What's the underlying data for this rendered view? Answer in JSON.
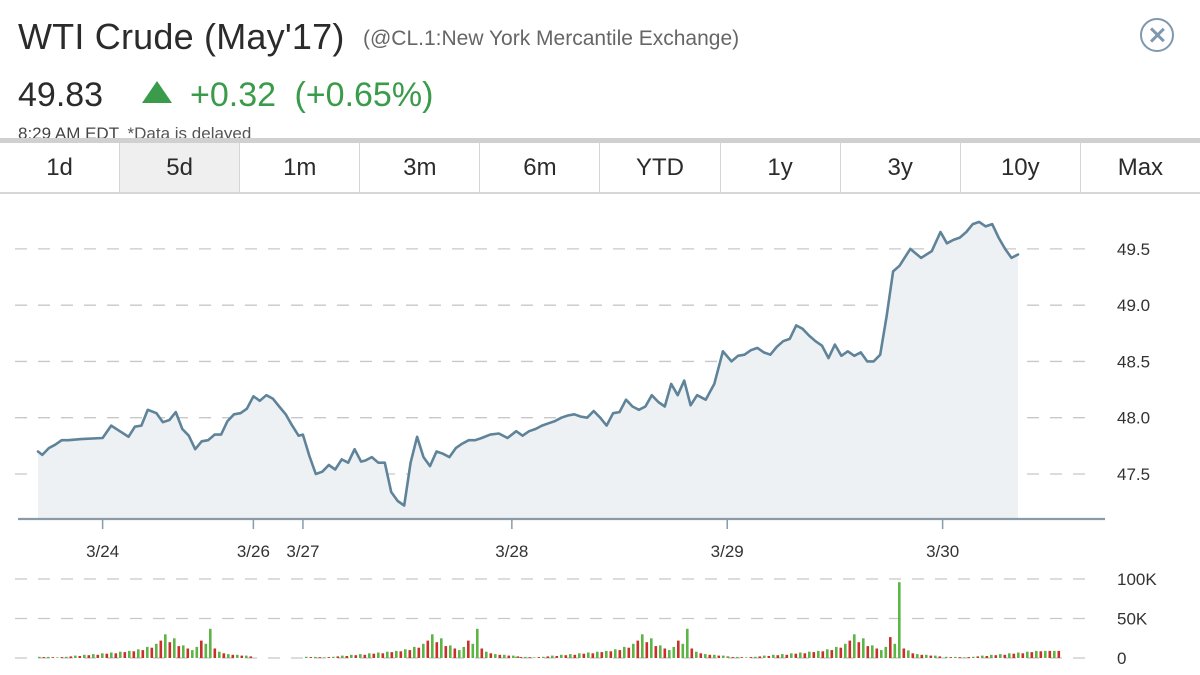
{
  "header": {
    "title": "WTI Crude (May'17)",
    "subtitle": "(@CL.1:New York Mercantile Exchange)",
    "price": "49.83",
    "change": "+0.32",
    "change_pct": "(+0.65%)",
    "time": "8:29 AM EDT",
    "delayed_note": "*Data is delayed",
    "change_direction": "up",
    "up_color": "#3a9b4a"
  },
  "icons": {
    "close": "close-icon",
    "arrow": "up-triangle-icon"
  },
  "tabs": [
    {
      "label": "1d"
    },
    {
      "label": "5d",
      "active": true
    },
    {
      "label": "1m"
    },
    {
      "label": "3m"
    },
    {
      "label": "6m"
    },
    {
      "label": "YTD"
    },
    {
      "label": "1y"
    },
    {
      "label": "3y"
    },
    {
      "label": "10y"
    },
    {
      "label": "Max"
    }
  ],
  "chart_data": [
    {
      "type": "area",
      "title": "",
      "xlabel": "",
      "ylabel": "",
      "ylim": [
        47.1,
        49.97
      ],
      "yticks": [
        47.5,
        48.0,
        48.5,
        49.0,
        49.5
      ],
      "ytick_labels": [
        "47.5",
        "48.0",
        "48.5",
        "49.0",
        "49.5"
      ],
      "grid": true,
      "xticks": [
        {
          "x": 3.0,
          "label": "3/24"
        },
        {
          "x": 10.0,
          "label": "3/26"
        },
        {
          "x": 12.3,
          "label": "3/27"
        },
        {
          "x": 22.0,
          "label": "3/28"
        },
        {
          "x": 32.0,
          "label": "3/29"
        },
        {
          "x": 42.0,
          "label": "3/30"
        }
      ],
      "line_color": "#5f8399",
      "fill_color": "#eef1f4",
      "series": [
        {
          "x": [
            0,
            0.2,
            0.5,
            0.8,
            1.1,
            1.4,
            2.0,
            3.0,
            3.4,
            3.8,
            4.2,
            4.5,
            4.8,
            5.1,
            5.5,
            5.8,
            6.1,
            6.4,
            6.7,
            7.0,
            7.3,
            7.6,
            7.9,
            8.2,
            8.5,
            8.8,
            9.1,
            9.4,
            9.7,
            10.0,
            10.3,
            10.6,
            10.9,
            11.2,
            11.5,
            11.8,
            12.1,
            12.3,
            12.6,
            12.9,
            13.2,
            13.5,
            13.8,
            14.1,
            14.4,
            14.7,
            15.0,
            15.2,
            15.5,
            15.8,
            16.1,
            16.4,
            16.7,
            17.0,
            17.3,
            17.6,
            17.9,
            18.2,
            18.5,
            18.8,
            19.1,
            19.4,
            19.7,
            20.0,
            20.3,
            20.6,
            21.0,
            21.4,
            21.8,
            22.2,
            22.5,
            22.8,
            23.1,
            23.4,
            23.7,
            24.0,
            24.3,
            24.6,
            24.9,
            25.2,
            25.5,
            25.8,
            26.1,
            26.4,
            26.7,
            27.0,
            27.3,
            27.6,
            27.9,
            28.2,
            28.5,
            28.8,
            29.1,
            29.4,
            29.7,
            30.0,
            30.3,
            30.6,
            31.0,
            31.4,
            31.8,
            32.2,
            32.5,
            32.8,
            33.1,
            33.4,
            33.7,
            34.0,
            34.3,
            34.6,
            34.9,
            35.2,
            35.5,
            35.8,
            36.1,
            36.4,
            36.7,
            37.0,
            37.3,
            37.6,
            37.9,
            38.2,
            38.5,
            38.8,
            39.1,
            39.4,
            39.7,
            40.0,
            40.5,
            41.0,
            41.5,
            41.9,
            42.2,
            42.5,
            42.8,
            43.1,
            43.4,
            43.7,
            44.0,
            44.3,
            44.6,
            44.9,
            45.2,
            45.5
          ],
          "y": [
            47.7,
            47.67,
            47.73,
            47.76,
            47.8,
            47.8,
            47.81,
            47.82,
            47.93,
            47.88,
            47.83,
            47.92,
            47.93,
            48.07,
            48.04,
            47.96,
            47.98,
            48.05,
            47.9,
            47.84,
            47.72,
            47.79,
            47.8,
            47.85,
            47.85,
            47.97,
            48.03,
            48.04,
            48.08,
            48.19,
            48.15,
            48.2,
            48.17,
            48.1,
            48.03,
            47.93,
            47.84,
            47.85,
            47.66,
            47.5,
            47.52,
            47.58,
            47.54,
            47.63,
            47.6,
            47.72,
            47.61,
            47.62,
            47.65,
            47.6,
            47.6,
            47.34,
            47.26,
            47.22,
            47.6,
            47.83,
            47.65,
            47.57,
            47.7,
            47.68,
            47.65,
            47.73,
            47.77,
            47.8,
            47.8,
            47.82,
            47.85,
            47.86,
            47.82,
            47.88,
            47.84,
            47.88,
            47.9,
            47.93,
            47.95,
            47.97,
            48.0,
            48.02,
            48.03,
            48.01,
            48.0,
            48.06,
            48.0,
            47.93,
            48.04,
            48.05,
            48.16,
            48.1,
            48.07,
            48.1,
            48.2,
            48.14,
            48.1,
            48.3,
            48.2,
            48.33,
            48.11,
            48.2,
            48.16,
            48.3,
            48.59,
            48.5,
            48.55,
            48.56,
            48.6,
            48.62,
            48.58,
            48.56,
            48.63,
            48.68,
            48.7,
            48.82,
            48.79,
            48.73,
            48.68,
            48.64,
            48.53,
            48.65,
            48.55,
            48.59,
            48.55,
            48.58,
            48.5,
            48.5,
            48.56,
            48.9,
            49.3,
            49.35,
            49.5,
            49.42,
            49.48,
            49.65,
            49.55,
            49.58,
            49.6,
            49.65,
            49.72,
            49.74,
            49.7,
            49.72,
            49.6,
            49.5,
            49.42,
            49.45
          ]
        }
      ]
    },
    {
      "type": "bar",
      "title": "",
      "ylabel": "",
      "ylim": [
        0,
        100000
      ],
      "yticks": [
        0,
        50000,
        100000
      ],
      "ytick_labels": [
        "0",
        "50K",
        "100K"
      ],
      "grid": true,
      "colors": {
        "up": "#5db546",
        "down": "#c9302c"
      },
      "series": [
        {
          "name": "volume",
          "values": [
            {
              "v": 1500,
              "c": "up"
            },
            {
              "v": 1200,
              "c": "down"
            },
            {
              "v": 1400,
              "c": "up"
            },
            {
              "v": 1000,
              "c": "down"
            },
            {
              "v": 800,
              "c": "up"
            },
            {
              "v": 1200,
              "c": "down"
            },
            {
              "v": 1500,
              "c": "up"
            },
            {
              "v": 2000,
              "c": "down"
            },
            {
              "v": 3000,
              "c": "up"
            },
            {
              "v": 2500,
              "c": "down"
            },
            {
              "v": 4000,
              "c": "up"
            },
            {
              "v": 3500,
              "c": "down"
            },
            {
              "v": 5000,
              "c": "up"
            },
            {
              "v": 4000,
              "c": "down"
            },
            {
              "v": 6000,
              "c": "up"
            },
            {
              "v": 5500,
              "c": "down"
            },
            {
              "v": 7000,
              "c": "up"
            },
            {
              "v": 6000,
              "c": "down"
            },
            {
              "v": 8000,
              "c": "up"
            },
            {
              "v": 7500,
              "c": "down"
            },
            {
              "v": 9000,
              "c": "up"
            },
            {
              "v": 8500,
              "c": "down"
            },
            {
              "v": 11000,
              "c": "up"
            },
            {
              "v": 10000,
              "c": "down"
            },
            {
              "v": 14000,
              "c": "up"
            },
            {
              "v": 13000,
              "c": "down"
            },
            {
              "v": 18000,
              "c": "up"
            },
            {
              "v": 22000,
              "c": "down"
            },
            {
              "v": 30000,
              "c": "up"
            },
            {
              "v": 20000,
              "c": "down"
            },
            {
              "v": 25000,
              "c": "up"
            },
            {
              "v": 15000,
              "c": "down"
            },
            {
              "v": 16000,
              "c": "up"
            },
            {
              "v": 12000,
              "c": "down"
            },
            {
              "v": 10000,
              "c": "up"
            },
            {
              "v": 14000,
              "c": "up"
            },
            {
              "v": 22000,
              "c": "down"
            },
            {
              "v": 18000,
              "c": "up"
            },
            {
              "v": 37000,
              "c": "up"
            },
            {
              "v": 12000,
              "c": "down"
            },
            {
              "v": 8000,
              "c": "up"
            },
            {
              "v": 6000,
              "c": "down"
            },
            {
              "v": 5000,
              "c": "up"
            },
            {
              "v": 4000,
              "c": "down"
            },
            {
              "v": 4000,
              "c": "up"
            },
            {
              "v": 3000,
              "c": "down"
            },
            {
              "v": 3000,
              "c": "up"
            },
            {
              "v": 2000,
              "c": "down"
            }
          ]
        }
      ]
    }
  ]
}
